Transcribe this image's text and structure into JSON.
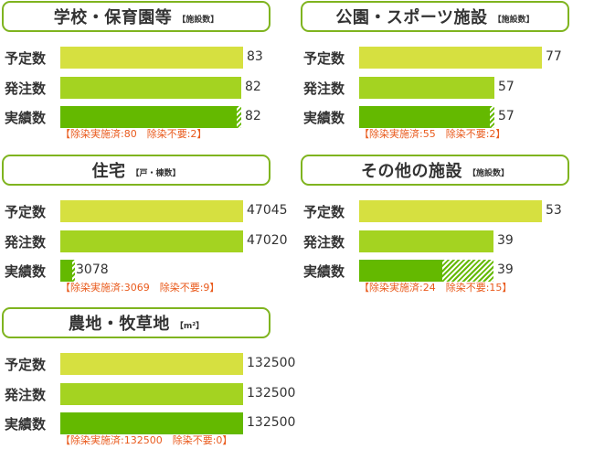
{
  "row_labels": {
    "plan": "予定数",
    "order": "発注数",
    "actual": "実績数"
  },
  "chart_data": [
    {
      "type": "bar",
      "title": "学校・保育園等",
      "unit": "【施設数】",
      "categories": [
        "予定数",
        "発注数",
        "実績数"
      ],
      "values": [
        83,
        82,
        82
      ],
      "breakdown": {
        "done": 80,
        "unneeded": 2
      },
      "note": "【除染実施済:80　除染不要:2】"
    },
    {
      "type": "bar",
      "title": "公園・スポーツ施設",
      "unit": "【施設数】",
      "categories": [
        "予定数",
        "発注数",
        "実績数"
      ],
      "values": [
        77,
        57,
        57
      ],
      "breakdown": {
        "done": 55,
        "unneeded": 2
      },
      "note": "【除染実施済:55　除染不要:2】"
    },
    {
      "type": "bar",
      "title": "住宅",
      "unit": "【戸・棟数】",
      "categories": [
        "予定数",
        "発注数",
        "実績数"
      ],
      "values": [
        47045,
        47020,
        3078
      ],
      "breakdown": {
        "done": 3069,
        "unneeded": 9
      },
      "note": "【除染実施済:3069　除染不要:9】"
    },
    {
      "type": "bar",
      "title": "その他の施設",
      "unit": "【施設数】",
      "categories": [
        "予定数",
        "発注数",
        "実績数"
      ],
      "values": [
        53,
        39,
        39
      ],
      "breakdown": {
        "done": 24,
        "unneeded": 15
      },
      "note": "【除染実施済:24　除染不要:15】"
    },
    {
      "type": "bar",
      "title": "農地・牧草地",
      "unit": "【m²】",
      "categories": [
        "予定数",
        "発注数",
        "実績数"
      ],
      "values": [
        132500,
        132500,
        132500
      ],
      "breakdown": {
        "done": 132500,
        "unneeded": 0
      },
      "note": "【除染実施済:132500　除染不要:0】"
    }
  ],
  "colors": {
    "plan": "#d6e040",
    "order": "#a4d321",
    "actual": "#64b900",
    "header_border": "#7fb41f",
    "note": "#e95a1c"
  }
}
